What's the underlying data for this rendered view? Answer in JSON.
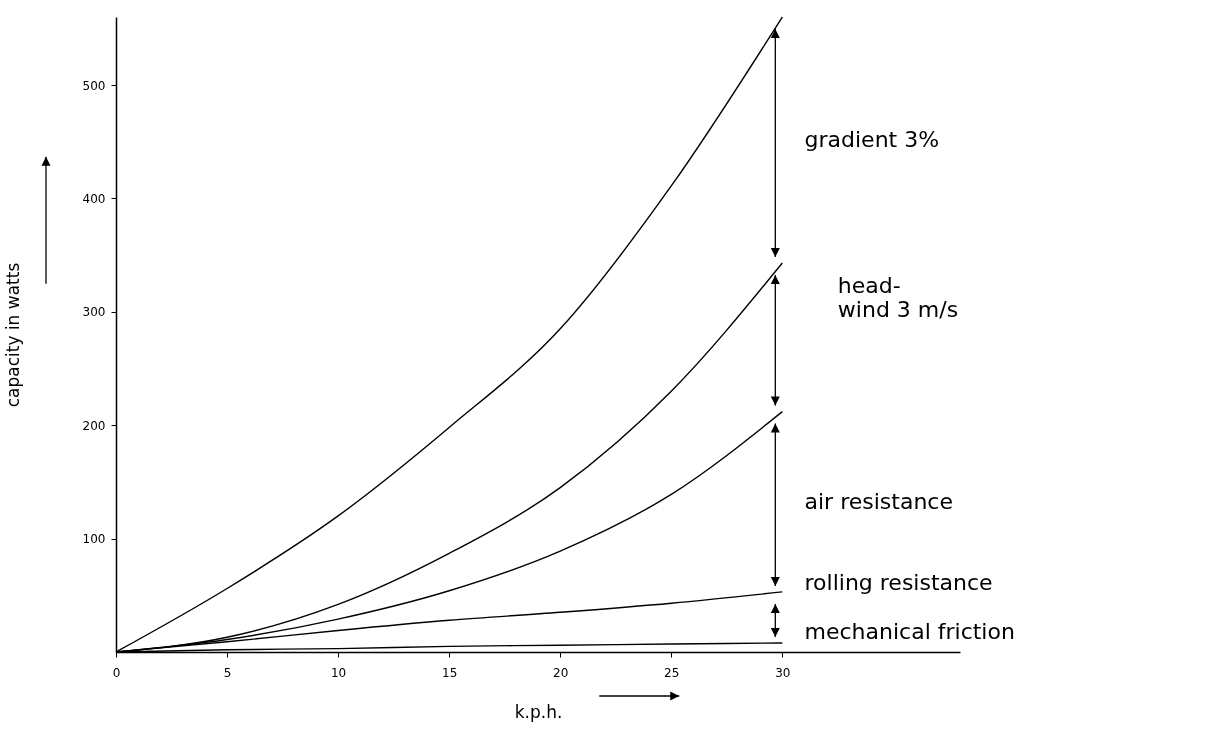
{
  "chart_data": {
    "type": "line",
    "xlabel": "k.p.h.",
    "ylabel": "capacity in watts",
    "x": [
      0,
      5,
      10,
      15,
      20,
      25,
      30
    ],
    "series": [
      {
        "color": "#000000",
        "values": [
          0,
          56,
          120,
          198,
          285,
          411,
          560
        ]
      },
      {
        "color": "#000000",
        "values": [
          0,
          13,
          42,
          87,
          145,
          230,
          343
        ]
      },
      {
        "color": "#000000",
        "values": [
          0,
          11,
          29,
          54,
          89,
          139,
          212
        ]
      },
      {
        "color": "#000000",
        "values": [
          0,
          9,
          19,
          28,
          35,
          43,
          53
        ]
      },
      {
        "color": "#000000",
        "values": [
          0,
          2,
          3,
          5,
          6,
          7,
          8
        ]
      }
    ],
    "xlim": [
      0,
      38
    ],
    "ylim": [
      0,
      560
    ],
    "xticks": [
      0,
      5,
      10,
      15,
      20,
      25,
      30
    ],
    "yticks": [
      100,
      200,
      300,
      400,
      500
    ],
    "grid": false,
    "marker": "none",
    "line_style": "solid",
    "annotations": [
      "gradient 3%",
      "head-\nwind 3 m/s",
      "air resistance",
      "rolling resistance",
      "mechanical friction"
    ]
  }
}
